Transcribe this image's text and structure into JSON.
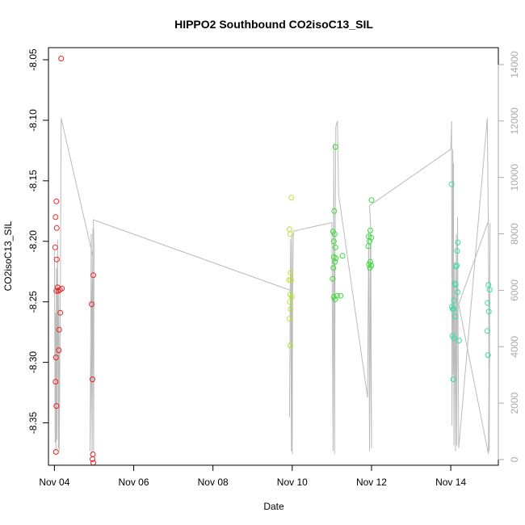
{
  "chart_data": {
    "type": "scatter",
    "title": "HIPPO2 Southbound CO2isoC13_SIL",
    "xlabel": "Date",
    "ylabel": "CO2isoC13_SIL",
    "xlim": [
      3.85,
      15.2
    ],
    "ylim": [
      -8.385,
      -8.04
    ],
    "y2lim": [
      -200,
      14600
    ],
    "x_ticks": [
      {
        "value": 4,
        "label": "Nov 04"
      },
      {
        "value": 6,
        "label": "Nov 06"
      },
      {
        "value": 8,
        "label": "Nov 08"
      },
      {
        "value": 10,
        "label": "Nov 10"
      },
      {
        "value": 12,
        "label": "Nov 12"
      },
      {
        "value": 14,
        "label": "Nov 14"
      }
    ],
    "y_ticks": [
      {
        "value": -8.05,
        "label": "-8.05"
      },
      {
        "value": -8.1,
        "label": "-8.10"
      },
      {
        "value": -8.15,
        "label": "-8.15"
      },
      {
        "value": -8.2,
        "label": "-8.20"
      },
      {
        "value": -8.25,
        "label": "-8.25"
      },
      {
        "value": -8.3,
        "label": "-8.30"
      },
      {
        "value": -8.35,
        "label": "-8.35"
      }
    ],
    "y2_ticks": [
      {
        "value": 0,
        "label": "0"
      },
      {
        "value": 2000,
        "label": "2000"
      },
      {
        "value": 4000,
        "label": "4000"
      },
      {
        "value": 6000,
        "label": "6000"
      },
      {
        "value": 8000,
        "label": "8000"
      },
      {
        "value": 10000,
        "label": "10000"
      },
      {
        "value": 12000,
        "label": "12000"
      },
      {
        "value": 14000,
        "label": "14000"
      }
    ],
    "grid": false,
    "colors": {
      "series_1": "#ee2222",
      "series_2": "#b8e62e",
      "series_3": "#33dd33",
      "series_4": "#33ddaa",
      "altitude_line": "#bbbbbb",
      "right_axis": "#aaaaaa"
    },
    "series": [
      {
        "color_key": "series_1",
        "points": [
          [
            4.17,
            -8.049
          ],
          [
            4.05,
            -8.167
          ],
          [
            4.03,
            -8.18
          ],
          [
            4.06,
            -8.189
          ],
          [
            4.02,
            -8.205
          ],
          [
            4.06,
            -8.215
          ],
          [
            4.08,
            -8.238
          ],
          [
            4.05,
            -8.241
          ],
          [
            4.1,
            -8.241
          ],
          [
            4.14,
            -8.24
          ],
          [
            4.19,
            -8.239
          ],
          [
            4.15,
            -8.259
          ],
          [
            4.12,
            -8.273
          ],
          [
            4.11,
            -8.29
          ],
          [
            4.04,
            -8.296
          ],
          [
            4.03,
            -8.316
          ],
          [
            4.05,
            -8.336
          ],
          [
            4.04,
            -8.374
          ],
          [
            4.98,
            -8.228
          ],
          [
            4.94,
            -8.252
          ],
          [
            4.96,
            -8.314
          ],
          [
            4.97,
            -8.376
          ],
          [
            4.96,
            -8.38
          ],
          [
            4.98,
            -8.383
          ]
        ]
      },
      {
        "color_key": "series_2",
        "points": [
          [
            9.98,
            -8.164
          ],
          [
            9.93,
            -8.19
          ],
          [
            9.95,
            -8.194
          ],
          [
            9.96,
            -8.226
          ],
          [
            9.92,
            -8.232
          ],
          [
            9.97,
            -8.232
          ],
          [
            9.95,
            -8.244
          ],
          [
            9.99,
            -8.246
          ],
          [
            9.94,
            -8.25
          ],
          [
            9.96,
            -8.256
          ],
          [
            9.93,
            -8.264
          ],
          [
            9.95,
            -8.286
          ]
        ]
      },
      {
        "color_key": "series_3",
        "points": [
          [
            11.09,
            -8.122
          ],
          [
            11.06,
            -8.175
          ],
          [
            11.03,
            -8.192
          ],
          [
            11.07,
            -8.194
          ],
          [
            11.05,
            -8.2
          ],
          [
            11.09,
            -8.205
          ],
          [
            11.05,
            -8.213
          ],
          [
            11.1,
            -8.214
          ],
          [
            11.27,
            -8.212
          ],
          [
            11.08,
            -8.217
          ],
          [
            11.04,
            -8.222
          ],
          [
            11.02,
            -8.231
          ],
          [
            11.05,
            -8.246
          ],
          [
            11.13,
            -8.245
          ],
          [
            11.22,
            -8.245
          ],
          [
            11.08,
            -8.248
          ],
          [
            12.0,
            -8.166
          ],
          [
            11.97,
            -8.191
          ],
          [
            11.93,
            -8.196
          ],
          [
            11.99,
            -8.197
          ],
          [
            11.95,
            -8.2
          ],
          [
            11.92,
            -8.204
          ],
          [
            11.97,
            -8.217
          ],
          [
            11.94,
            -8.219
          ],
          [
            11.99,
            -8.22
          ],
          [
            11.96,
            -8.222
          ]
        ]
      },
      {
        "color_key": "series_4",
        "points": [
          [
            14.02,
            -8.153
          ],
          [
            14.18,
            -8.201
          ],
          [
            14.16,
            -8.208
          ],
          [
            14.15,
            -8.22
          ],
          [
            14.13,
            -8.221
          ],
          [
            14.1,
            -8.235
          ],
          [
            14.12,
            -8.236
          ],
          [
            14.17,
            -8.242
          ],
          [
            14.08,
            -8.249
          ],
          [
            14.03,
            -8.254
          ],
          [
            14.05,
            -8.256
          ],
          [
            14.07,
            -8.256
          ],
          [
            14.11,
            -8.262
          ],
          [
            14.04,
            -8.278
          ],
          [
            14.08,
            -8.28
          ],
          [
            14.21,
            -8.282
          ],
          [
            14.06,
            -8.314
          ],
          [
            14.95,
            -8.236
          ],
          [
            14.98,
            -8.24
          ],
          [
            14.93,
            -8.251
          ],
          [
            14.96,
            -8.258
          ],
          [
            14.92,
            -8.274
          ],
          [
            14.94,
            -8.294
          ]
        ]
      }
    ],
    "altitude_series": {
      "axis": "right",
      "points": [
        [
          4.0,
          7400
        ],
        [
          4.02,
          600
        ],
        [
          4.03,
          5200
        ],
        [
          4.04,
          300
        ],
        [
          4.05,
          6800
        ],
        [
          4.06,
          700
        ],
        [
          4.08,
          7800
        ],
        [
          4.1,
          400
        ],
        [
          4.11,
          6000
        ],
        [
          4.12,
          300
        ],
        [
          4.15,
          5800
        ],
        [
          4.17,
          12100
        ],
        [
          4.97,
          7200
        ],
        [
          4.9,
          300
        ],
        [
          4.93,
          8000
        ],
        [
          4.95,
          200
        ],
        [
          4.97,
          8200
        ],
        [
          4.99,
          300
        ],
        [
          5.0,
          7500
        ],
        [
          4.98,
          8500
        ],
        [
          9.95,
          6000
        ],
        [
          9.93,
          1500
        ],
        [
          9.96,
          7800
        ],
        [
          9.98,
          300
        ],
        [
          9.99,
          8000
        ],
        [
          10.0,
          200
        ],
        [
          10.01,
          6000
        ],
        [
          10.03,
          8100
        ],
        [
          11.0,
          8400
        ],
        [
          11.03,
          300
        ],
        [
          11.05,
          11200
        ],
        [
          11.07,
          200
        ],
        [
          11.08,
          7000
        ],
        [
          11.1,
          11800
        ],
        [
          11.14,
          12000
        ],
        [
          11.17,
          9400
        ],
        [
          11.9,
          2200
        ],
        [
          11.93,
          8100
        ],
        [
          11.95,
          300
        ],
        [
          11.97,
          7600
        ],
        [
          11.99,
          1800
        ],
        [
          12.0,
          400
        ],
        [
          11.98,
          8200
        ],
        [
          11.95,
          9000
        ],
        [
          14.0,
          11000
        ],
        [
          14.02,
          12000
        ],
        [
          14.03,
          1200
        ],
        [
          14.05,
          11000
        ],
        [
          14.06,
          3000
        ],
        [
          14.07,
          10500
        ],
        [
          14.08,
          500
        ],
        [
          14.1,
          7000
        ],
        [
          14.12,
          300
        ],
        [
          14.14,
          8000
        ],
        [
          14.15,
          500
        ],
        [
          14.17,
          8600
        ],
        [
          14.2,
          400
        ],
        [
          14.92,
          12100
        ],
        [
          14.95,
          8000
        ],
        [
          14.97,
          300
        ],
        [
          14.99,
          8400
        ],
        [
          14.95,
          200
        ],
        [
          14.2,
          5500
        ],
        [
          14.96,
          8500
        ]
      ]
    }
  }
}
